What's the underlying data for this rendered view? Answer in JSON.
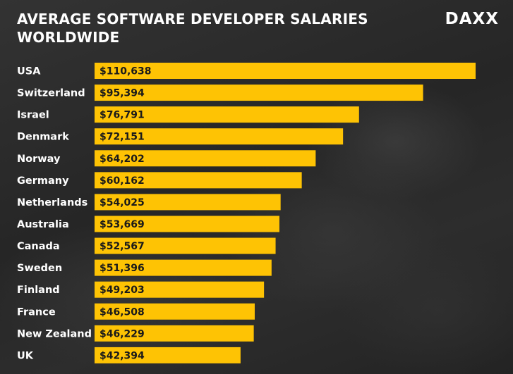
{
  "header": {
    "title_line1": "AVERAGE SOFTWARE DEVELOPER SALARIES",
    "title_line2": "WORLDWIDE",
    "logo": "DAXX"
  },
  "colors": {
    "bar": "#fec304",
    "text": "#ffffff",
    "value_text": "#1a1a1a"
  },
  "chart_data": {
    "type": "bar",
    "orientation": "horizontal",
    "title": "AVERAGE SOFTWARE DEVELOPER SALARIES WORLDWIDE",
    "categories": [
      "USA",
      "Switzerland",
      "Israel",
      "Denmark",
      "Norway",
      "Germany",
      "Netherlands",
      "Australia",
      "Canada",
      "Sweden",
      "Finland",
      "France",
      "New Zealand",
      "UK"
    ],
    "values": [
      110638,
      95394,
      76791,
      72151,
      64202,
      60162,
      54025,
      53669,
      52567,
      51396,
      49203,
      46508,
      46229,
      42394
    ],
    "value_labels": [
      "$110,638",
      "$95,394",
      "$76,791",
      "$72,151",
      "$64,202",
      "$60,162",
      "$54,025",
      "$53,669",
      "$52,567",
      "$51,396",
      "$49,203",
      "$46,508",
      "$46,229",
      "$42,394"
    ],
    "xlabel": "",
    "ylabel": "",
    "grid": false,
    "legend": "none"
  }
}
